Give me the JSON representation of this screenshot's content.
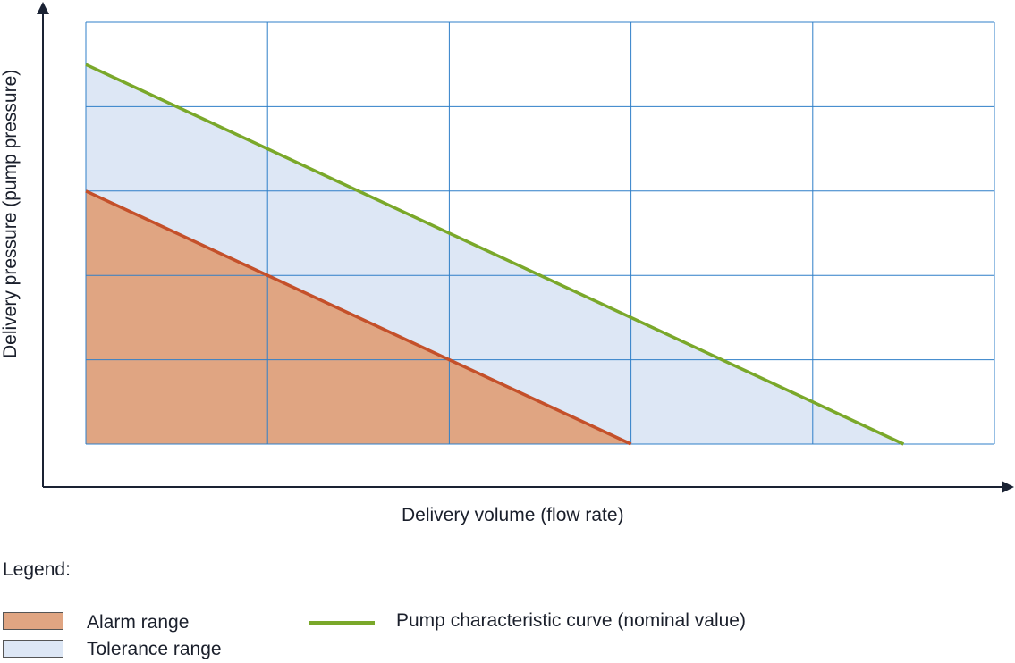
{
  "chart_data": {
    "type": "area",
    "xlabel": "Delivery volume (flow rate)",
    "ylabel": "Delivery pressure (pump pressure)",
    "xlim": [
      0,
      5
    ],
    "ylim": [
      0,
      5
    ],
    "grid": true,
    "tick_labels": false,
    "series": [
      {
        "name": "Pump characteristic curve (nominal value)",
        "kind": "line",
        "color": "#7aa82a",
        "x": [
          0,
          4.5
        ],
        "y": [
          4.5,
          0
        ]
      },
      {
        "name": "Tolerance range",
        "kind": "area",
        "color": "#dde7f5",
        "x": [
          0,
          4.5
        ],
        "y": [
          4.5,
          0
        ]
      },
      {
        "name": "Alarm range",
        "kind": "area",
        "color": "#e0a582",
        "edge_color": "#c4502a",
        "x": [
          0,
          3
        ],
        "y": [
          3,
          0
        ]
      }
    ]
  },
  "legend": {
    "title": "Legend:",
    "placement": "bottom",
    "items": [
      {
        "label": "Alarm range",
        "color": "#e0a582"
      },
      {
        "label": "Tolerance range",
        "color": "#dde7f5"
      },
      {
        "label": "Pump characteristic curve (nominal value)",
        "color": "#7aa82a"
      }
    ]
  },
  "colors": {
    "grid": "#2f7fc8",
    "axis": "#1a2233"
  }
}
